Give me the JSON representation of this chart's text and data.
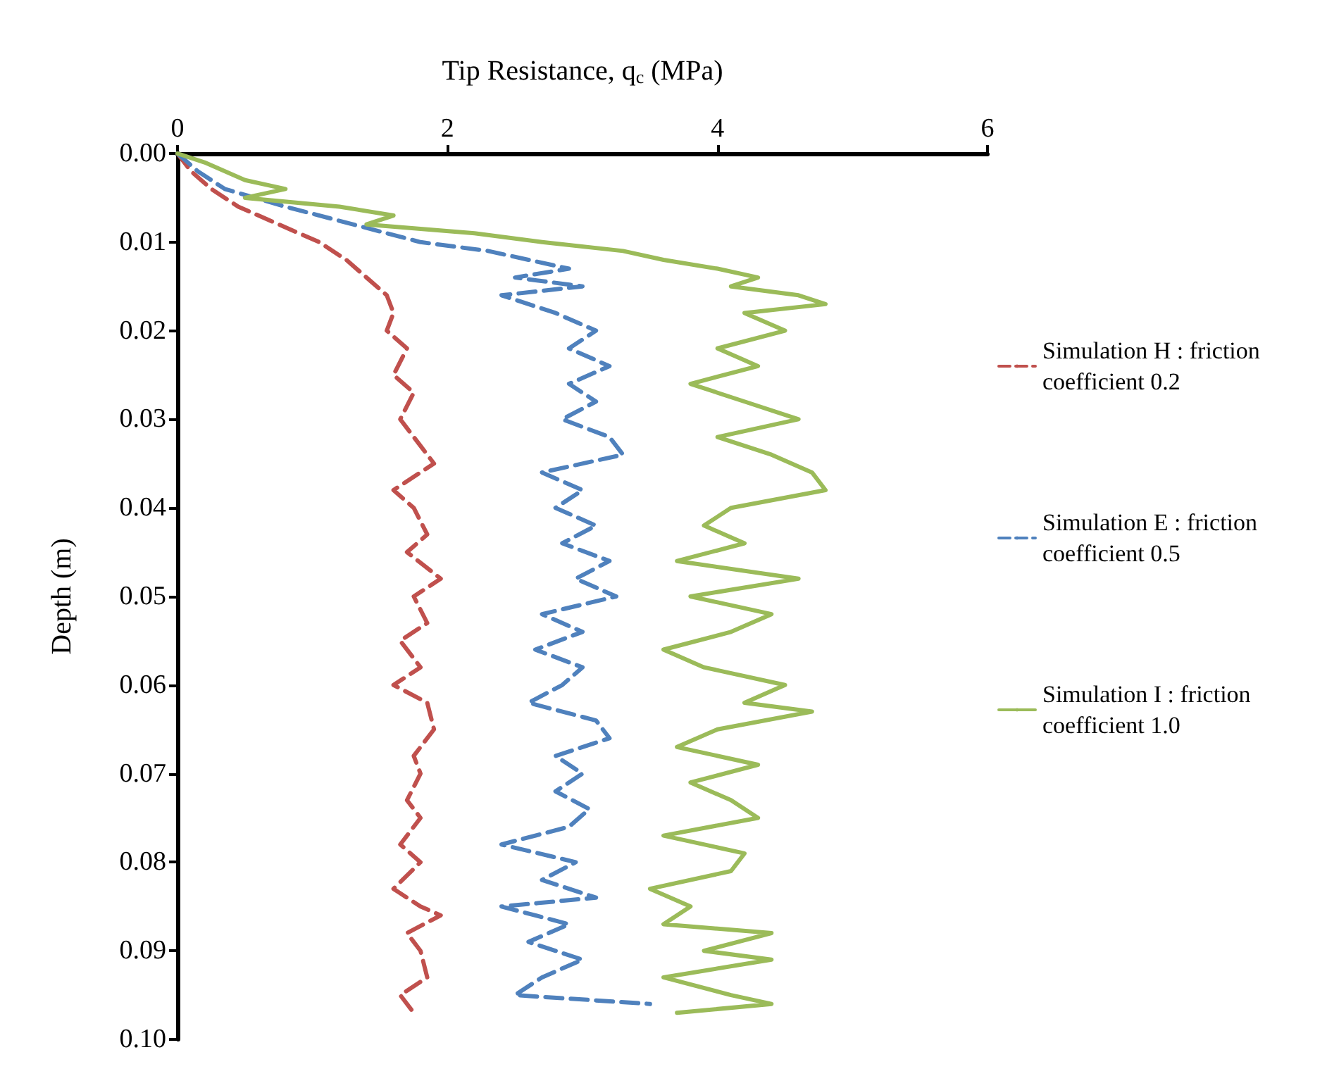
{
  "chart_data": {
    "type": "line",
    "xlabel": "Tip Resistance, q$_{c}$ (MPa)",
    "ylabel": "Depth (m)",
    "xlim": [
      0,
      6
    ],
    "xticks": [
      0,
      2,
      4,
      6
    ],
    "ylim": [
      0.1,
      0
    ],
    "yticks": [
      {
        "value": 0,
        "label": "0.00"
      },
      {
        "value": 0.01,
        "label": "0.01"
      },
      {
        "value": 0.02,
        "label": "0.02"
      },
      {
        "value": 0.03,
        "label": "0.03"
      },
      {
        "value": 0.04,
        "label": "0.04"
      },
      {
        "value": 0.05,
        "label": "0.05"
      },
      {
        "value": 0.06,
        "label": "0.06"
      },
      {
        "value": 0.07,
        "label": "0.07"
      },
      {
        "value": 0.08,
        "label": "0.08"
      },
      {
        "value": 0.09,
        "label": "0.09"
      },
      {
        "value": 0.1,
        "label": "0.10"
      }
    ],
    "grid": false,
    "legend": "right",
    "marker": "none",
    "series": [
      {
        "name": "Simulation H : friction coefficient 0.2",
        "color": "#c0504d",
        "line_style": "dashed",
        "x": [
          0,
          0.1,
          0.25,
          0.45,
          0.75,
          1.05,
          1.25,
          1.4,
          1.55,
          1.6,
          1.55,
          1.7,
          1.6,
          1.75,
          1.65,
          1.8,
          1.9,
          1.6,
          1.75,
          1.85,
          1.7,
          1.95,
          1.75,
          1.85,
          1.65,
          1.8,
          1.6,
          1.85,
          1.9,
          1.75,
          1.8,
          1.7,
          1.8,
          1.65,
          1.8,
          1.6,
          1.8,
          1.95,
          1.7,
          1.8,
          1.85,
          1.65,
          1.75
        ],
        "values": [
          0,
          0.002,
          0.004,
          0.006,
          0.008,
          0.01,
          0.012,
          0.014,
          0.016,
          0.018,
          0.02,
          0.022,
          0.025,
          0.027,
          0.03,
          0.033,
          0.035,
          0.038,
          0.04,
          0.043,
          0.045,
          0.048,
          0.05,
          0.053,
          0.055,
          0.058,
          0.06,
          0.062,
          0.065,
          0.068,
          0.07,
          0.073,
          0.075,
          0.078,
          0.08,
          0.083,
          0.085,
          0.086,
          0.088,
          0.09,
          0.093,
          0.095,
          0.097
        ]
      },
      {
        "name": "Simulation E : friction coefficient 0.5",
        "color": "#4f81bd",
        "line_style": "dashed",
        "x": [
          0,
          0.15,
          0.35,
          0.8,
          1.3,
          1.8,
          2.3,
          2.6,
          2.9,
          2.5,
          3.0,
          2.4,
          2.8,
          3.1,
          2.9,
          3.2,
          2.9,
          3.1,
          2.85,
          3.2,
          3.3,
          2.7,
          3.0,
          2.8,
          3.1,
          2.85,
          3.2,
          2.95,
          3.25,
          2.7,
          3.0,
          2.65,
          3.0,
          2.85,
          2.6,
          3.1,
          3.2,
          2.8,
          3.0,
          2.8,
          3.05,
          2.9,
          2.4,
          2.95,
          2.7,
          3.1,
          2.4,
          2.9,
          2.6,
          3.0,
          2.7,
          2.5,
          3.5
        ],
        "values": [
          0,
          0.002,
          0.004,
          0.006,
          0.008,
          0.01,
          0.011,
          0.012,
          0.013,
          0.014,
          0.015,
          0.016,
          0.018,
          0.02,
          0.022,
          0.024,
          0.026,
          0.028,
          0.03,
          0.032,
          0.034,
          0.036,
          0.038,
          0.04,
          0.042,
          0.044,
          0.046,
          0.048,
          0.05,
          0.052,
          0.054,
          0.056,
          0.058,
          0.06,
          0.062,
          0.064,
          0.066,
          0.068,
          0.07,
          0.072,
          0.074,
          0.076,
          0.078,
          0.08,
          0.082,
          0.084,
          0.085,
          0.087,
          0.089,
          0.091,
          0.093,
          0.095,
          0.096
        ]
      },
      {
        "name": "Simulation I : friction coefficient 1.0",
        "color": "#9bbb59",
        "line_style": "solid",
        "x": [
          0,
          0.2,
          0.5,
          0.8,
          0.5,
          1.2,
          1.6,
          1.4,
          2.2,
          2.7,
          3.3,
          3.6,
          4.0,
          4.3,
          4.1,
          4.6,
          4.8,
          4.2,
          4.5,
          4.0,
          4.3,
          3.8,
          4.2,
          4.6,
          4.0,
          4.4,
          4.7,
          4.8,
          4.1,
          3.9,
          4.2,
          3.7,
          4.6,
          3.8,
          4.4,
          4.1,
          3.6,
          3.9,
          4.5,
          4.2,
          4.7,
          4.0,
          3.7,
          4.3,
          3.8,
          4.1,
          4.3,
          3.6,
          4.2,
          4.1,
          3.5,
          3.8,
          3.6,
          4.4,
          3.9,
          4.4,
          3.6,
          4.1,
          4.4,
          3.7
        ],
        "values": [
          0,
          0.001,
          0.003,
          0.004,
          0.005,
          0.006,
          0.007,
          0.008,
          0.009,
          0.01,
          0.011,
          0.012,
          0.013,
          0.014,
          0.015,
          0.016,
          0.017,
          0.018,
          0.02,
          0.022,
          0.024,
          0.026,
          0.028,
          0.03,
          0.032,
          0.034,
          0.036,
          0.038,
          0.04,
          0.042,
          0.044,
          0.046,
          0.048,
          0.05,
          0.052,
          0.054,
          0.056,
          0.058,
          0.06,
          0.062,
          0.063,
          0.065,
          0.067,
          0.069,
          0.071,
          0.073,
          0.075,
          0.077,
          0.079,
          0.081,
          0.083,
          0.085,
          0.087,
          0.088,
          0.09,
          0.091,
          0.093,
          0.095,
          0.096,
          0.097
        ]
      }
    ]
  }
}
